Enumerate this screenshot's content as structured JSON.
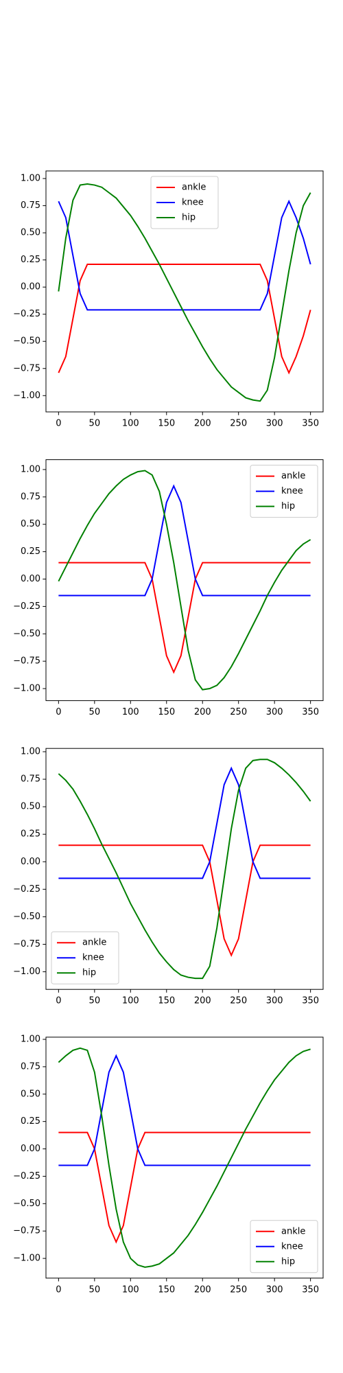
{
  "chart_data": [
    {
      "type": "line",
      "legend": "upper center",
      "x": [
        0,
        10,
        20,
        30,
        40,
        50,
        60,
        70,
        80,
        90,
        100,
        110,
        120,
        130,
        140,
        150,
        160,
        170,
        180,
        190,
        200,
        210,
        220,
        230,
        240,
        250,
        260,
        270,
        280,
        290,
        300,
        310,
        320,
        330,
        340,
        350
      ],
      "xlim": [
        -17.5,
        367.5
      ],
      "xticks": [
        0,
        50,
        100,
        150,
        200,
        250,
        300,
        350
      ],
      "ylim": [
        -1.15,
        1.07
      ],
      "yticks": [
        {
          "value": -1,
          "label": "−1.00"
        },
        {
          "value": -0.75,
          "label": "−0.75"
        },
        {
          "value": -0.5,
          "label": "−0.50"
        },
        {
          "value": -0.25,
          "label": "−0.25"
        },
        {
          "value": 0,
          "label": "0.00"
        },
        {
          "value": 0.25,
          "label": "0.25"
        },
        {
          "value": 0.5,
          "label": "0.50"
        },
        {
          "value": 0.75,
          "label": "0.75"
        },
        {
          "value": 1,
          "label": "1.00"
        }
      ],
      "series": [
        {
          "name": "ankle",
          "color": "#ff0000",
          "values": [
            -0.79,
            -0.64,
            -0.29,
            0.06,
            0.21,
            0.21,
            0.21,
            0.21,
            0.21,
            0.21,
            0.21,
            0.21,
            0.21,
            0.21,
            0.21,
            0.21,
            0.21,
            0.21,
            0.21,
            0.21,
            0.21,
            0.21,
            0.21,
            0.21,
            0.21,
            0.21,
            0.21,
            0.21,
            0.21,
            0.06,
            -0.29,
            -0.64,
            -0.79,
            -0.64,
            -0.45,
            -0.21
          ]
        },
        {
          "name": "knee",
          "color": "#0000ff",
          "values": [
            0.79,
            0.64,
            0.29,
            -0.06,
            -0.21,
            -0.21,
            -0.21,
            -0.21,
            -0.21,
            -0.21,
            -0.21,
            -0.21,
            -0.21,
            -0.21,
            -0.21,
            -0.21,
            -0.21,
            -0.21,
            -0.21,
            -0.21,
            -0.21,
            -0.21,
            -0.21,
            -0.21,
            -0.21,
            -0.21,
            -0.21,
            -0.21,
            -0.21,
            -0.06,
            0.29,
            0.64,
            0.79,
            0.64,
            0.45,
            0.21
          ]
        },
        {
          "name": "hip",
          "color": "#008000",
          "values": [
            -0.04,
            0.45,
            0.8,
            0.94,
            0.95,
            0.94,
            0.92,
            0.87,
            0.82,
            0.74,
            0.66,
            0.56,
            0.45,
            0.33,
            0.21,
            0.08,
            -0.05,
            -0.18,
            -0.31,
            -0.43,
            -0.55,
            -0.66,
            -0.76,
            -0.84,
            -0.92,
            -0.97,
            -1.02,
            -1.04,
            -1.05,
            -0.95,
            -0.65,
            -0.25,
            0.15,
            0.5,
            0.75,
            0.87
          ]
        }
      ]
    },
    {
      "type": "line",
      "legend": "upper right",
      "x": [
        0,
        10,
        20,
        30,
        40,
        50,
        60,
        70,
        80,
        90,
        100,
        110,
        120,
        130,
        140,
        150,
        160,
        170,
        180,
        190,
        200,
        210,
        220,
        230,
        240,
        250,
        260,
        270,
        280,
        290,
        300,
        310,
        320,
        330,
        340,
        350
      ],
      "xlim": [
        -17.5,
        367.5
      ],
      "xticks": [
        0,
        50,
        100,
        150,
        200,
        250,
        300,
        350
      ],
      "ylim": [
        -1.11,
        1.09
      ],
      "yticks": [
        {
          "value": -1,
          "label": "−1.00"
        },
        {
          "value": -0.75,
          "label": "−0.75"
        },
        {
          "value": -0.5,
          "label": "−0.50"
        },
        {
          "value": -0.25,
          "label": "−0.25"
        },
        {
          "value": 0,
          "label": "0.00"
        },
        {
          "value": 0.25,
          "label": "0.25"
        },
        {
          "value": 0.5,
          "label": "0.50"
        },
        {
          "value": 0.75,
          "label": "0.75"
        },
        {
          "value": 1,
          "label": "1.00"
        }
      ],
      "series": [
        {
          "name": "ankle",
          "color": "#ff0000",
          "values": [
            0.15,
            0.15,
            0.15,
            0.15,
            0.15,
            0.15,
            0.15,
            0.15,
            0.15,
            0.15,
            0.15,
            0.15,
            0.15,
            0.0,
            -0.35,
            -0.7,
            -0.85,
            -0.7,
            -0.35,
            0.0,
            0.15,
            0.15,
            0.15,
            0.15,
            0.15,
            0.15,
            0.15,
            0.15,
            0.15,
            0.15,
            0.15,
            0.15,
            0.15,
            0.15,
            0.15,
            0.15
          ]
        },
        {
          "name": "knee",
          "color": "#0000ff",
          "values": [
            -0.15,
            -0.15,
            -0.15,
            -0.15,
            -0.15,
            -0.15,
            -0.15,
            -0.15,
            -0.15,
            -0.15,
            -0.15,
            -0.15,
            -0.15,
            0.0,
            0.35,
            0.7,
            0.85,
            0.7,
            0.35,
            0.0,
            -0.15,
            -0.15,
            -0.15,
            -0.15,
            -0.15,
            -0.15,
            -0.15,
            -0.15,
            -0.15,
            -0.15,
            -0.15,
            -0.15,
            -0.15,
            -0.15,
            -0.15,
            -0.15
          ]
        },
        {
          "name": "hip",
          "color": "#008000",
          "values": [
            -0.02,
            0.11,
            0.24,
            0.37,
            0.49,
            0.6,
            0.69,
            0.78,
            0.85,
            0.91,
            0.95,
            0.98,
            0.99,
            0.95,
            0.8,
            0.5,
            0.15,
            -0.25,
            -0.65,
            -0.92,
            -1.01,
            -1.0,
            -0.97,
            -0.9,
            -0.8,
            -0.68,
            -0.55,
            -0.42,
            -0.29,
            -0.15,
            -0.03,
            0.08,
            0.17,
            0.26,
            0.32,
            0.36
          ]
        }
      ]
    },
    {
      "type": "line",
      "legend": "lower left",
      "x": [
        0,
        10,
        20,
        30,
        40,
        50,
        60,
        70,
        80,
        90,
        100,
        110,
        120,
        130,
        140,
        150,
        160,
        170,
        180,
        190,
        200,
        210,
        220,
        230,
        240,
        250,
        260,
        270,
        280,
        290,
        300,
        310,
        320,
        330,
        340,
        350
      ],
      "xlim": [
        -17.5,
        367.5
      ],
      "xticks": [
        0,
        50,
        100,
        150,
        200,
        250,
        300,
        350
      ],
      "ylim": [
        -1.16,
        1.03
      ],
      "yticks": [
        {
          "value": -1,
          "label": "−1.00"
        },
        {
          "value": -0.75,
          "label": "−0.75"
        },
        {
          "value": -0.5,
          "label": "−0.50"
        },
        {
          "value": -0.25,
          "label": "−0.25"
        },
        {
          "value": 0,
          "label": "0.00"
        },
        {
          "value": 0.25,
          "label": "0.25"
        },
        {
          "value": 0.5,
          "label": "0.50"
        },
        {
          "value": 0.75,
          "label": "0.75"
        },
        {
          "value": 1,
          "label": "1.00"
        }
      ],
      "series": [
        {
          "name": "ankle",
          "color": "#ff0000",
          "values": [
            0.15,
            0.15,
            0.15,
            0.15,
            0.15,
            0.15,
            0.15,
            0.15,
            0.15,
            0.15,
            0.15,
            0.15,
            0.15,
            0.15,
            0.15,
            0.15,
            0.15,
            0.15,
            0.15,
            0.15,
            0.15,
            0.0,
            -0.35,
            -0.7,
            -0.85,
            -0.7,
            -0.35,
            0.0,
            0.15,
            0.15,
            0.15,
            0.15,
            0.15,
            0.15,
            0.15,
            0.15
          ]
        },
        {
          "name": "knee",
          "color": "#0000ff",
          "values": [
            -0.15,
            -0.15,
            -0.15,
            -0.15,
            -0.15,
            -0.15,
            -0.15,
            -0.15,
            -0.15,
            -0.15,
            -0.15,
            -0.15,
            -0.15,
            -0.15,
            -0.15,
            -0.15,
            -0.15,
            -0.15,
            -0.15,
            -0.15,
            -0.15,
            0.0,
            0.35,
            0.7,
            0.85,
            0.7,
            0.35,
            0.0,
            -0.15,
            -0.15,
            -0.15,
            -0.15,
            -0.15,
            -0.15,
            -0.15,
            -0.15
          ]
        },
        {
          "name": "hip",
          "color": "#008000",
          "values": [
            0.8,
            0.74,
            0.66,
            0.55,
            0.43,
            0.3,
            0.16,
            0.03,
            -0.1,
            -0.24,
            -0.38,
            -0.5,
            -0.62,
            -0.73,
            -0.83,
            -0.91,
            -0.98,
            -1.03,
            -1.05,
            -1.06,
            -1.06,
            -0.95,
            -0.6,
            -0.15,
            0.3,
            0.65,
            0.85,
            0.92,
            0.93,
            0.93,
            0.9,
            0.85,
            0.79,
            0.72,
            0.64,
            0.55
          ]
        }
      ]
    },
    {
      "type": "line",
      "legend": "lower right",
      "x": [
        0,
        10,
        20,
        30,
        40,
        50,
        60,
        70,
        80,
        90,
        100,
        110,
        120,
        130,
        140,
        150,
        160,
        170,
        180,
        190,
        200,
        210,
        220,
        230,
        240,
        250,
        260,
        270,
        280,
        290,
        300,
        310,
        320,
        330,
        340,
        350
      ],
      "xlim": [
        -17.5,
        367.5
      ],
      "xticks": [
        0,
        50,
        100,
        150,
        200,
        250,
        300,
        350
      ],
      "ylim": [
        -1.18,
        1.02
      ],
      "yticks": [
        {
          "value": -1,
          "label": "−1.00"
        },
        {
          "value": -0.75,
          "label": "−0.75"
        },
        {
          "value": -0.5,
          "label": "−0.50"
        },
        {
          "value": -0.25,
          "label": "−0.25"
        },
        {
          "value": 0,
          "label": "0.00"
        },
        {
          "value": 0.25,
          "label": "0.25"
        },
        {
          "value": 0.5,
          "label": "0.50"
        },
        {
          "value": 0.75,
          "label": "0.75"
        },
        {
          "value": 1,
          "label": "1.00"
        }
      ],
      "series": [
        {
          "name": "ankle",
          "color": "#ff0000",
          "values": [
            0.15,
            0.15,
            0.15,
            0.15,
            0.15,
            0.0,
            -0.35,
            -0.7,
            -0.85,
            -0.7,
            -0.35,
            0.0,
            0.15,
            0.15,
            0.15,
            0.15,
            0.15,
            0.15,
            0.15,
            0.15,
            0.15,
            0.15,
            0.15,
            0.15,
            0.15,
            0.15,
            0.15,
            0.15,
            0.15,
            0.15,
            0.15,
            0.15,
            0.15,
            0.15,
            0.15,
            0.15
          ]
        },
        {
          "name": "knee",
          "color": "#0000ff",
          "values": [
            -0.15,
            -0.15,
            -0.15,
            -0.15,
            -0.15,
            0.0,
            0.35,
            0.7,
            0.85,
            0.7,
            0.35,
            0.0,
            -0.15,
            -0.15,
            -0.15,
            -0.15,
            -0.15,
            -0.15,
            -0.15,
            -0.15,
            -0.15,
            -0.15,
            -0.15,
            -0.15,
            -0.15,
            -0.15,
            -0.15,
            -0.15,
            -0.15,
            -0.15,
            -0.15,
            -0.15,
            -0.15,
            -0.15,
            -0.15,
            -0.15
          ]
        },
        {
          "name": "hip",
          "color": "#008000",
          "values": [
            0.79,
            0.85,
            0.9,
            0.92,
            0.9,
            0.7,
            0.3,
            -0.15,
            -0.55,
            -0.85,
            -1.0,
            -1.06,
            -1.08,
            -1.07,
            -1.05,
            -1.0,
            -0.95,
            -0.87,
            -0.79,
            -0.69,
            -0.58,
            -0.46,
            -0.34,
            -0.21,
            -0.08,
            0.05,
            0.18,
            0.3,
            0.42,
            0.53,
            0.63,
            0.71,
            0.79,
            0.85,
            0.89,
            0.91
          ]
        }
      ]
    }
  ]
}
